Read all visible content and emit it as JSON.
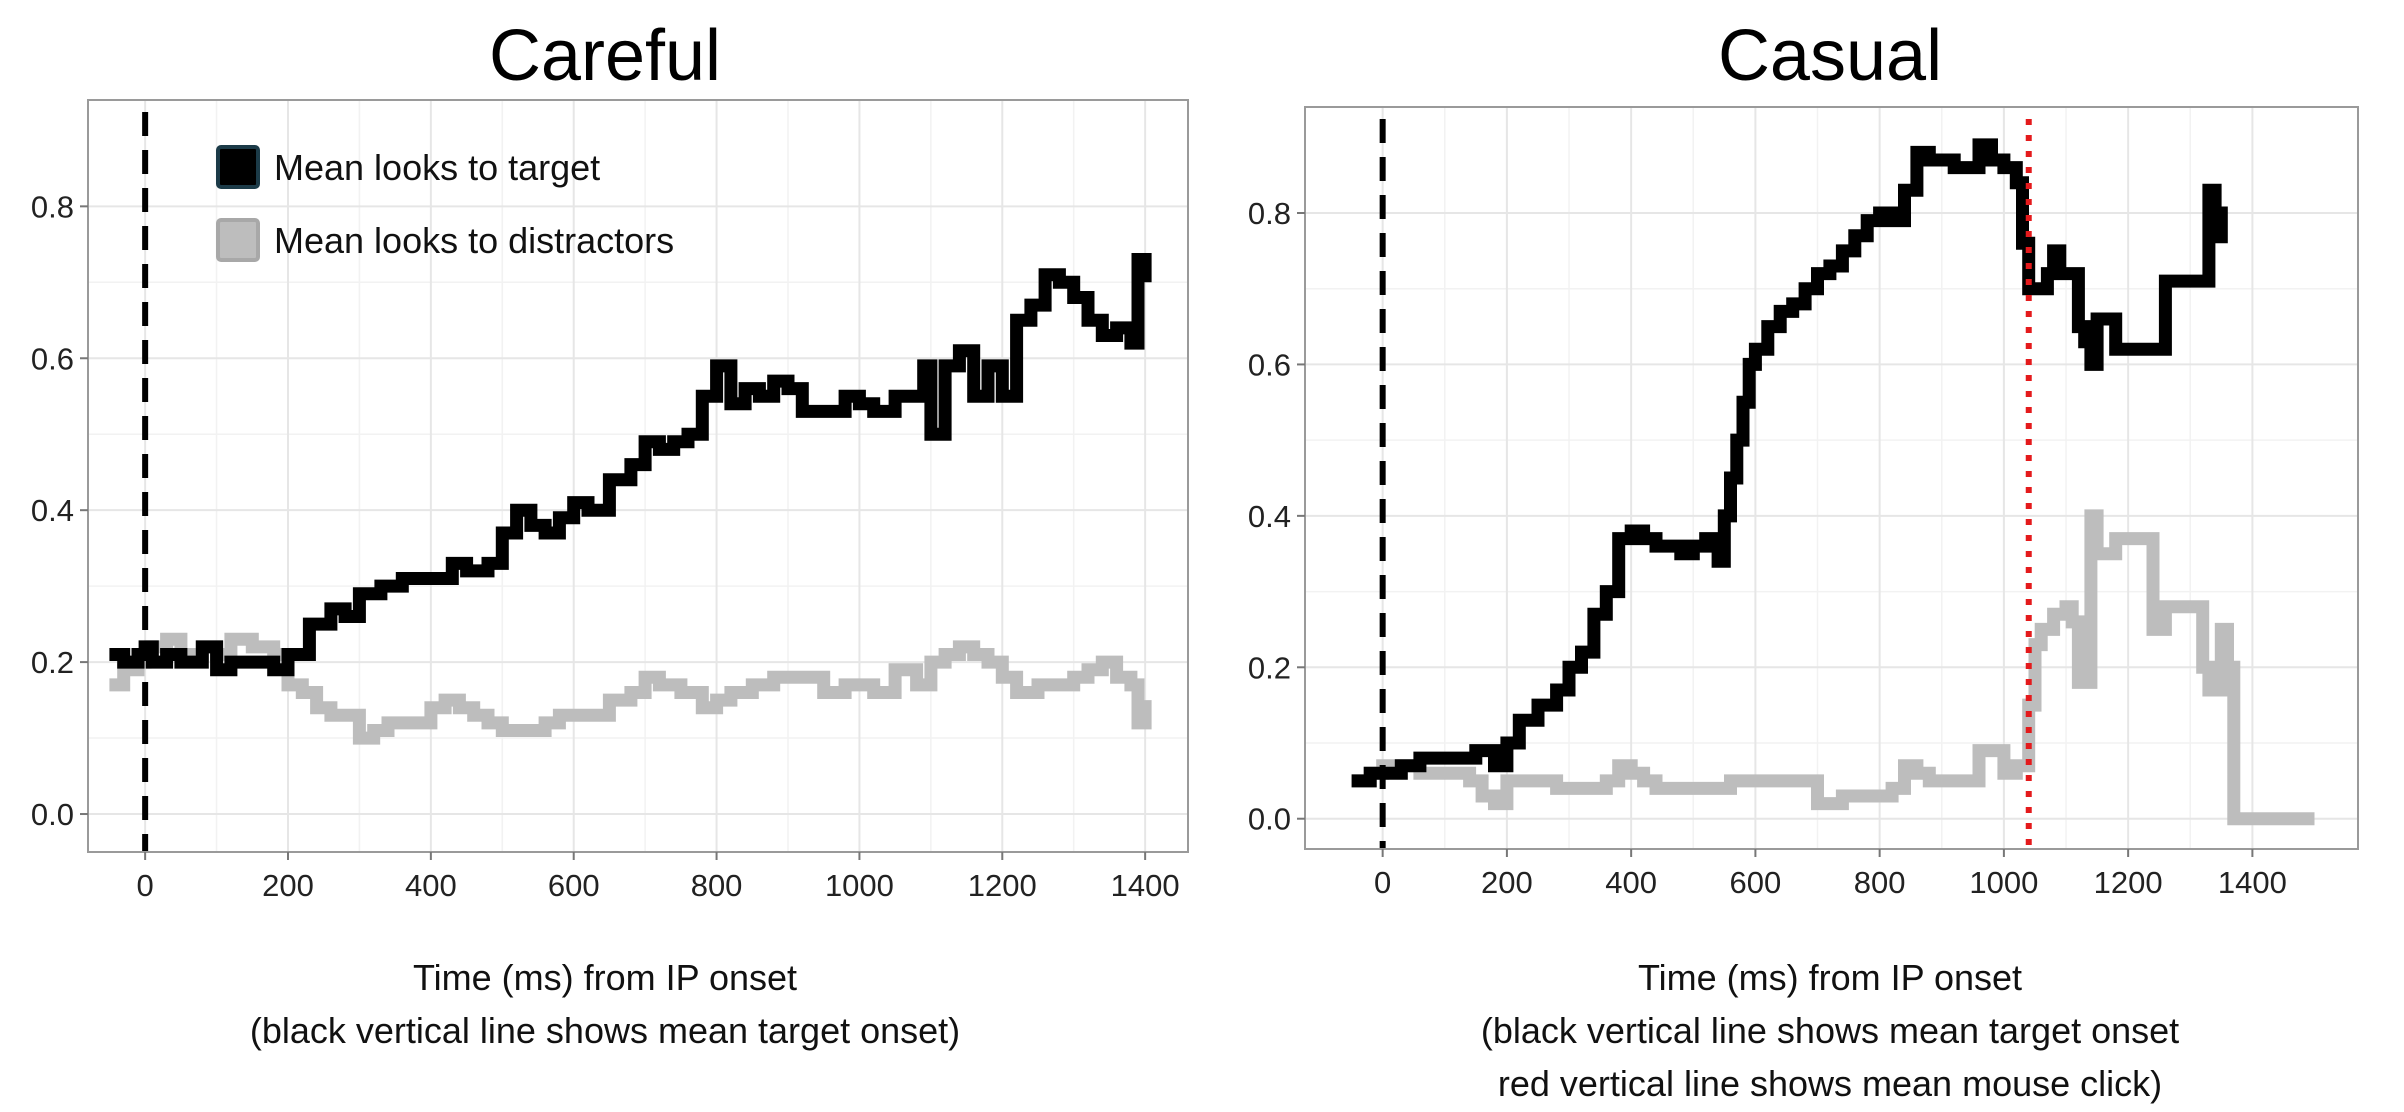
{
  "chart_data": [
    {
      "type": "line",
      "title": "Careful",
      "xlabel": [
        "Time (ms) from IP onset",
        "(black vertical line shows mean target onset)"
      ],
      "ylabel": "",
      "xlim": [
        -80,
        1460
      ],
      "ylim": [
        -0.05,
        0.94
      ],
      "xticks": [
        "0",
        "200",
        "400",
        "600",
        "800",
        "1000",
        "1200",
        "1400"
      ],
      "yticks": [
        "0.0",
        "0.2",
        "0.4",
        "0.6",
        "0.8"
      ],
      "grid": true,
      "legend": "top-left",
      "vlines": [
        {
          "x": 0,
          "color": "#000000",
          "style": "dashed"
        }
      ],
      "series": [
        {
          "name": "Mean looks to target",
          "color": "#000000",
          "x": [
            -50,
            -30,
            -10,
            0,
            10,
            30,
            50,
            80,
            100,
            120,
            150,
            180,
            200,
            230,
            260,
            280,
            300,
            330,
            360,
            400,
            430,
            450,
            480,
            500,
            520,
            540,
            560,
            580,
            600,
            620,
            650,
            680,
            700,
            720,
            740,
            760,
            780,
            800,
            820,
            840,
            860,
            880,
            900,
            920,
            950,
            980,
            1000,
            1020,
            1050,
            1070,
            1090,
            1100,
            1120,
            1140,
            1160,
            1180,
            1200,
            1220,
            1240,
            1260,
            1280,
            1300,
            1320,
            1340,
            1360,
            1380,
            1390,
            1400
          ],
          "y": [
            0.21,
            0.2,
            0.21,
            0.22,
            0.2,
            0.21,
            0.2,
            0.22,
            0.19,
            0.2,
            0.2,
            0.19,
            0.21,
            0.25,
            0.27,
            0.26,
            0.29,
            0.3,
            0.31,
            0.31,
            0.33,
            0.32,
            0.33,
            0.37,
            0.4,
            0.38,
            0.37,
            0.39,
            0.41,
            0.4,
            0.44,
            0.46,
            0.49,
            0.48,
            0.49,
            0.5,
            0.55,
            0.59,
            0.54,
            0.56,
            0.55,
            0.57,
            0.56,
            0.53,
            0.53,
            0.55,
            0.54,
            0.53,
            0.55,
            0.55,
            0.59,
            0.5,
            0.59,
            0.61,
            0.55,
            0.59,
            0.55,
            0.65,
            0.67,
            0.71,
            0.7,
            0.68,
            0.65,
            0.63,
            0.64,
            0.62,
            0.73,
            0.7
          ]
        },
        {
          "name": "Mean looks to distractors",
          "color": "#bdbdbd",
          "x": [
            -50,
            -30,
            -10,
            0,
            10,
            30,
            50,
            80,
            100,
            120,
            150,
            180,
            200,
            220,
            240,
            260,
            280,
            300,
            320,
            340,
            360,
            380,
            400,
            420,
            440,
            460,
            480,
            500,
            520,
            540,
            560,
            580,
            600,
            620,
            650,
            680,
            700,
            720,
            750,
            780,
            800,
            820,
            850,
            880,
            900,
            920,
            950,
            980,
            1000,
            1020,
            1050,
            1080,
            1100,
            1120,
            1140,
            1160,
            1180,
            1200,
            1220,
            1250,
            1280,
            1300,
            1320,
            1340,
            1360,
            1380,
            1390,
            1400
          ],
          "y": [
            0.17,
            0.19,
            0.2,
            0.21,
            0.22,
            0.23,
            0.21,
            0.22,
            0.21,
            0.23,
            0.22,
            0.21,
            0.17,
            0.16,
            0.14,
            0.13,
            0.13,
            0.1,
            0.11,
            0.12,
            0.12,
            0.12,
            0.14,
            0.15,
            0.14,
            0.13,
            0.12,
            0.11,
            0.11,
            0.11,
            0.12,
            0.13,
            0.13,
            0.13,
            0.15,
            0.16,
            0.18,
            0.17,
            0.16,
            0.14,
            0.15,
            0.16,
            0.17,
            0.18,
            0.18,
            0.18,
            0.16,
            0.17,
            0.17,
            0.16,
            0.19,
            0.17,
            0.2,
            0.21,
            0.22,
            0.21,
            0.2,
            0.18,
            0.16,
            0.17,
            0.17,
            0.18,
            0.19,
            0.2,
            0.18,
            0.17,
            0.12,
            0.15
          ]
        }
      ]
    },
    {
      "type": "line",
      "title": "Casual",
      "xlabel": [
        "Time (ms) from IP onset",
        "(black vertical line shows mean target onset",
        "red vertical line shows mean mouse click)"
      ],
      "ylabel": "",
      "xlim": [
        -125,
        1570
      ],
      "ylim": [
        -0.04,
        0.94
      ],
      "xticks": [
        "0",
        "200",
        "400",
        "600",
        "800",
        "1000",
        "1200",
        "1400"
      ],
      "yticks": [
        "0.0",
        "0.2",
        "0.4",
        "0.6",
        "0.8"
      ],
      "grid": true,
      "vlines": [
        {
          "x": 0,
          "color": "#000000",
          "style": "dashed"
        },
        {
          "x": 1040,
          "color": "#e41a1c",
          "style": "dotted"
        }
      ],
      "series": [
        {
          "name": "Mean looks to target",
          "color": "#000000",
          "x": [
            -50,
            -20,
            0,
            30,
            60,
            90,
            120,
            150,
            180,
            200,
            220,
            250,
            280,
            300,
            320,
            340,
            360,
            380,
            400,
            420,
            440,
            460,
            480,
            500,
            520,
            540,
            550,
            560,
            570,
            580,
            590,
            600,
            620,
            640,
            660,
            680,
            700,
            720,
            740,
            760,
            780,
            800,
            820,
            840,
            860,
            880,
            900,
            920,
            940,
            960,
            980,
            1000,
            1020,
            1030,
            1040,
            1050,
            1060,
            1070,
            1080,
            1090,
            1100,
            1110,
            1120,
            1130,
            1140,
            1150,
            1160,
            1170,
            1180,
            1200,
            1220,
            1240,
            1260,
            1280,
            1300,
            1320,
            1330,
            1340,
            1350
          ],
          "y": [
            0.05,
            0.06,
            0.06,
            0.07,
            0.08,
            0.08,
            0.08,
            0.09,
            0.07,
            0.1,
            0.13,
            0.15,
            0.17,
            0.2,
            0.22,
            0.27,
            0.3,
            0.37,
            0.38,
            0.37,
            0.36,
            0.36,
            0.35,
            0.36,
            0.37,
            0.34,
            0.4,
            0.45,
            0.5,
            0.55,
            0.6,
            0.62,
            0.65,
            0.67,
            0.68,
            0.7,
            0.72,
            0.73,
            0.75,
            0.77,
            0.79,
            0.8,
            0.79,
            0.83,
            0.88,
            0.87,
            0.87,
            0.86,
            0.86,
            0.89,
            0.87,
            0.86,
            0.84,
            0.76,
            0.7,
            0.7,
            0.7,
            0.72,
            0.75,
            0.72,
            0.72,
            0.72,
            0.65,
            0.63,
            0.6,
            0.66,
            0.66,
            0.66,
            0.62,
            0.62,
            0.62,
            0.62,
            0.71,
            0.71,
            0.71,
            0.71,
            0.83,
            0.8,
            0.76
          ]
        },
        {
          "name": "Mean looks to distractors",
          "color": "#bdbdbd",
          "x": [
            -50,
            -20,
            0,
            30,
            60,
            100,
            140,
            160,
            180,
            200,
            240,
            280,
            320,
            360,
            380,
            400,
            420,
            440,
            480,
            520,
            560,
            600,
            640,
            680,
            700,
            740,
            780,
            800,
            820,
            840,
            860,
            880,
            900,
            920,
            940,
            960,
            980,
            1000,
            1020,
            1040,
            1050,
            1060,
            1080,
            1100,
            1110,
            1120,
            1140,
            1150,
            1160,
            1180,
            1200,
            1220,
            1240,
            1260,
            1280,
            1300,
            1310,
            1320,
            1330,
            1340,
            1350,
            1360,
            1370,
            1380,
            1400,
            1450,
            1500
          ],
          "y": [
            0.05,
            0.06,
            0.07,
            0.07,
            0.06,
            0.06,
            0.05,
            0.03,
            0.02,
            0.05,
            0.05,
            0.04,
            0.04,
            0.05,
            0.07,
            0.06,
            0.05,
            0.04,
            0.04,
            0.04,
            0.05,
            0.05,
            0.05,
            0.05,
            0.02,
            0.03,
            0.03,
            0.03,
            0.04,
            0.07,
            0.06,
            0.05,
            0.05,
            0.05,
            0.05,
            0.09,
            0.09,
            0.06,
            0.07,
            0.15,
            0.23,
            0.25,
            0.27,
            0.28,
            0.26,
            0.18,
            0.4,
            0.35,
            0.35,
            0.37,
            0.37,
            0.37,
            0.25,
            0.28,
            0.28,
            0.28,
            0.28,
            0.2,
            0.17,
            0.17,
            0.25,
            0.2,
            0.0,
            0.0,
            0.0,
            0.0,
            0.0
          ]
        }
      ]
    }
  ]
}
